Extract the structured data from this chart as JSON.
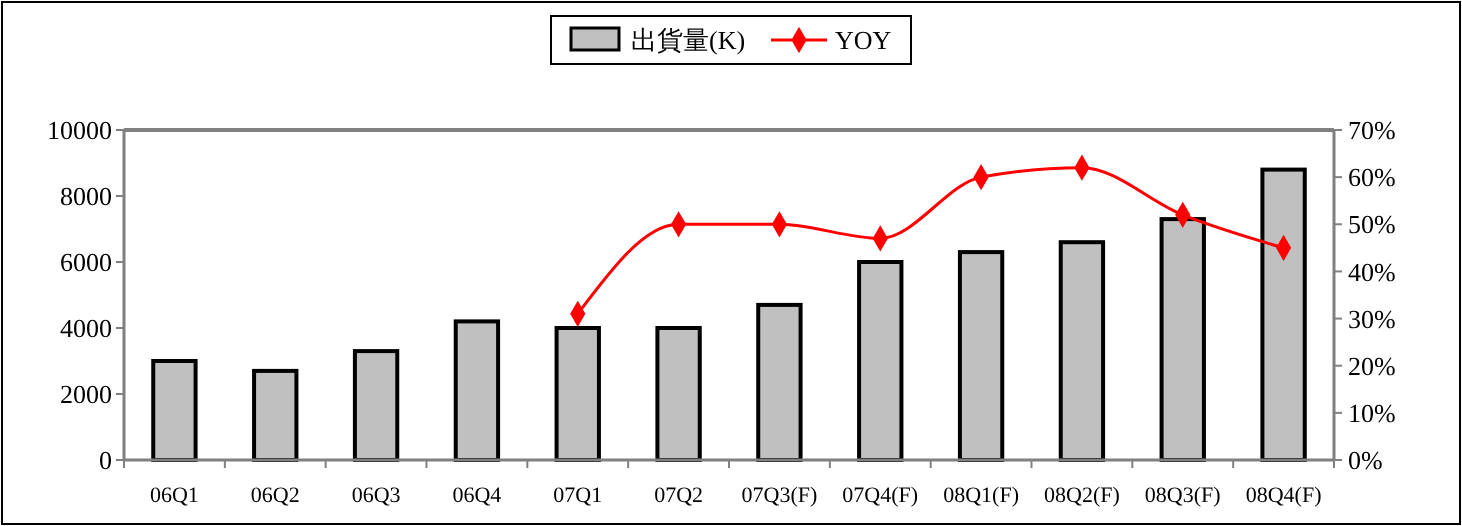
{
  "chart_data": {
    "type": "bar",
    "categories": [
      "06Q1",
      "06Q2",
      "06Q3",
      "06Q4",
      "07Q1",
      "07Q2",
      "07Q3(F)",
      "07Q4(F)",
      "08Q1(F)",
      "08Q2(F)",
      "08Q3(F)",
      "08Q4(F)"
    ],
    "series": [
      {
        "name": "出貨量(K)",
        "color": "#c0c0c0",
        "values": [
          3000,
          2700,
          3300,
          4200,
          4000,
          4000,
          4700,
          6000,
          6300,
          6600,
          7300,
          8800
        ]
      },
      {
        "name": "YOY",
        "type": "line",
        "axis": "y2",
        "color": "#ff0000",
        "marker": "diamond",
        "values": [
          null,
          null,
          null,
          null,
          31,
          50,
          50,
          47,
          60,
          62,
          52,
          45
        ]
      }
    ],
    "ylim": [
      0,
      10000
    ],
    "yticks": [
      0,
      2000,
      4000,
      6000,
      8000,
      10000
    ],
    "y2lim": [
      0,
      70
    ],
    "y2ticks": [
      {
        "value": 0,
        "label": "0%"
      },
      {
        "value": 10,
        "label": "10%"
      },
      {
        "value": 20,
        "label": "20%"
      },
      {
        "value": 30,
        "label": "30%"
      },
      {
        "value": 40,
        "label": "40%"
      },
      {
        "value": 50,
        "label": "50%"
      },
      {
        "value": 60,
        "label": "60%"
      },
      {
        "value": 70,
        "label": "70%"
      }
    ],
    "grid": false,
    "legend": "top"
  }
}
